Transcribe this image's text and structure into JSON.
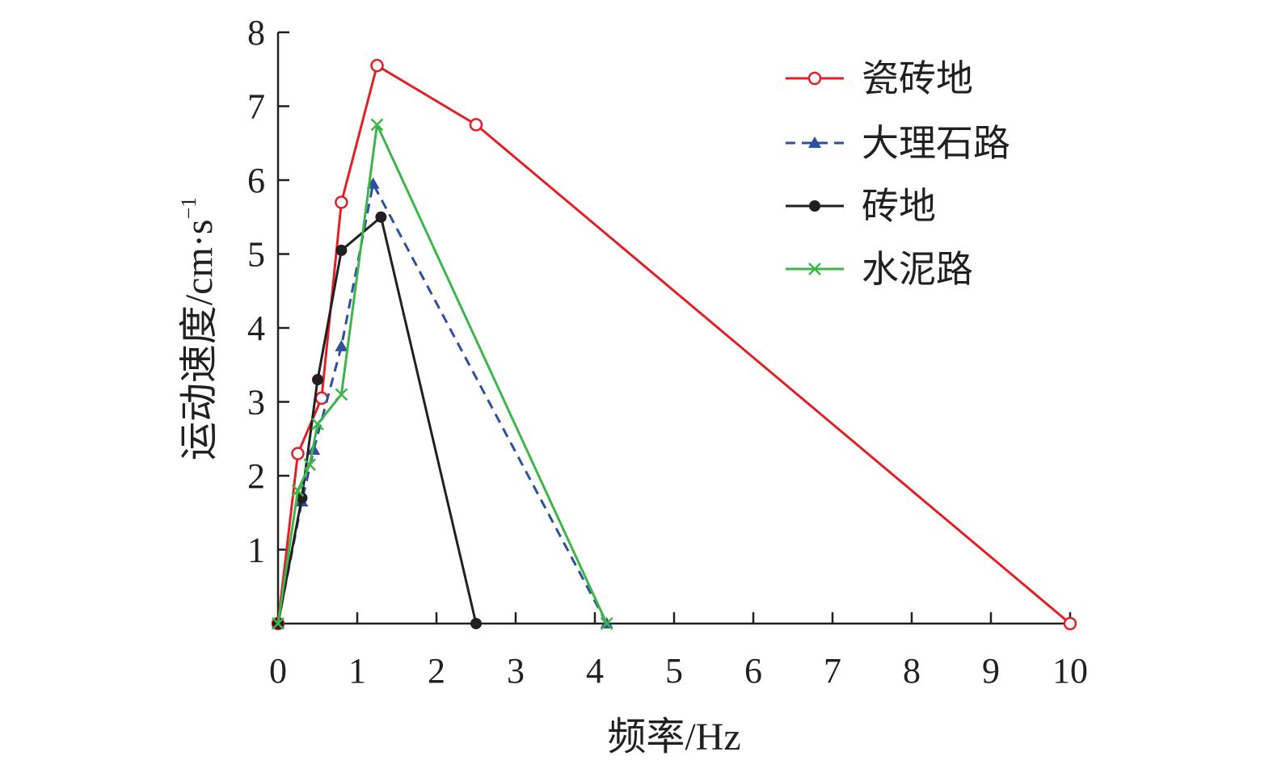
{
  "chart_data": {
    "type": "line",
    "title": "",
    "xlabel": "频率/Hz",
    "ylabel": {
      "main": "运动速度/cm·s",
      "sup": "−1"
    },
    "xlim": [
      0,
      10
    ],
    "ylim": [
      0,
      8
    ],
    "x_ticks": [
      "0",
      "1",
      "2",
      "3",
      "4",
      "5",
      "6",
      "7",
      "8",
      "9",
      "10"
    ],
    "y_ticks": [
      "1",
      "2",
      "3",
      "4",
      "5",
      "6",
      "7",
      "8"
    ],
    "grid": false,
    "legend_position": "top-right",
    "series": [
      {
        "name": "瓷砖地",
        "color": "#e31e25",
        "marker": "open-circle",
        "dash": "solid",
        "x": [
          0,
          0.25,
          0.55,
          0.8,
          1.25,
          2.5,
          10
        ],
        "y": [
          0,
          2.3,
          3.05,
          5.7,
          7.55,
          6.75,
          0
        ]
      },
      {
        "name": "大理石路",
        "color": "#2e4fa0",
        "marker": "triangle",
        "dash": "dashed",
        "x": [
          0,
          0.3,
          0.45,
          0.8,
          1.2,
          4.15
        ],
        "y": [
          0,
          1.65,
          2.35,
          3.75,
          5.95,
          0
        ]
      },
      {
        "name": "砖地",
        "color": "#231f20",
        "marker": "filled-circle",
        "dash": "solid",
        "x": [
          0,
          0.3,
          0.5,
          0.8,
          1.3,
          2.5
        ],
        "y": [
          0,
          1.7,
          3.3,
          5.05,
          5.5,
          0
        ]
      },
      {
        "name": "水泥路",
        "color": "#3db54a",
        "marker": "x",
        "dash": "solid",
        "x": [
          0,
          0.25,
          0.4,
          0.5,
          0.8,
          1.25,
          4.15
        ],
        "y": [
          0,
          1.8,
          2.15,
          2.7,
          3.1,
          6.75,
          0
        ]
      }
    ]
  }
}
